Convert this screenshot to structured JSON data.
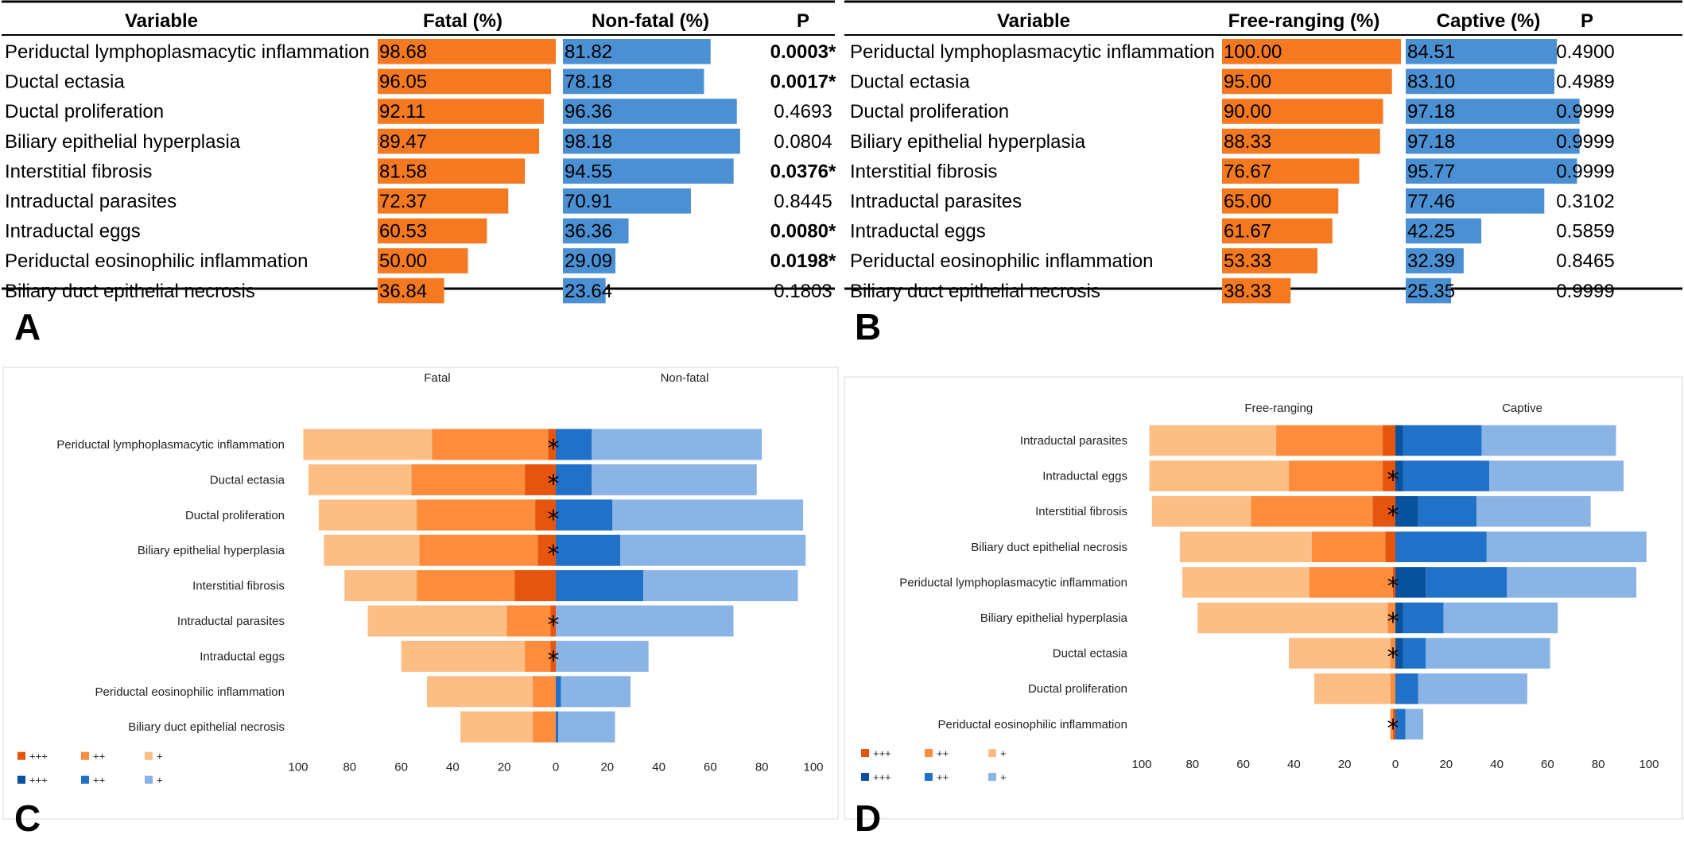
{
  "panels": {
    "A": "A",
    "B": "B",
    "C": "C",
    "D": "D"
  },
  "colors": {
    "orange_bar": "#F47920",
    "blue_bar": "#4A90D2",
    "o3": "#E6550D",
    "o2": "#FD8D3C",
    "o1": "#FDBE85",
    "b3": "#08519C",
    "b2": "#2171C9",
    "b1": "#8AB4E6"
  },
  "tables": [
    {
      "id": "A",
      "headers": [
        "Variable",
        "Fatal (%)",
        "Non-fatal (%)",
        "P"
      ],
      "rows": [
        {
          "variable": "Periductal lymphoplasmacytic inflammation",
          "a": 98.68,
          "a_label": "98.68",
          "b": 81.82,
          "b_label": "81.82",
          "p": "0.0003*",
          "sig": true
        },
        {
          "variable": "Ductal ectasia",
          "a": 96.05,
          "a_label": "96.05",
          "b": 78.18,
          "b_label": "78.18",
          "p": "0.0017*",
          "sig": true
        },
        {
          "variable": "Ductal proliferation",
          "a": 92.11,
          "a_label": "92.11",
          "b": 96.36,
          "b_label": "96.36",
          "p": "0.4693",
          "sig": false
        },
        {
          "variable": "Biliary epithelial hyperplasia",
          "a": 89.47,
          "a_label": "89.47",
          "b": 98.18,
          "b_label": "98.18",
          "p": "0.0804",
          "sig": false
        },
        {
          "variable": "Interstitial fibrosis",
          "a": 81.58,
          "a_label": "81.58",
          "b": 94.55,
          "b_label": "94.55",
          "p": "0.0376*",
          "sig": true
        },
        {
          "variable": "Intraductal parasites",
          "a": 72.37,
          "a_label": "72.37",
          "b": 70.91,
          "b_label": "70.91",
          "p": "0.8445",
          "sig": false
        },
        {
          "variable": "Intraductal eggs",
          "a": 60.53,
          "a_label": "60.53",
          "b": 36.36,
          "b_label": "36.36",
          "p": "0.0080*",
          "sig": true
        },
        {
          "variable": "Periductal eosinophilic inflammation",
          "a": 50.0,
          "a_label": "50.00",
          "b": 29.09,
          "b_label": "29.09",
          "p": "0.0198*",
          "sig": true
        },
        {
          "variable": "Biliary duct epithelial necrosis",
          "a": 36.84,
          "a_label": "36.84",
          "b": 23.64,
          "b_label": "23.64",
          "p": "0.1803",
          "sig": false
        }
      ]
    },
    {
      "id": "B",
      "headers": [
        "Variable",
        "Free-ranging (%)",
        "Captive (%)",
        "P"
      ],
      "rows": [
        {
          "variable": "Periductal lymphoplasmacytic inflammation",
          "a": 100.0,
          "a_label": "100.00",
          "b": 84.51,
          "b_label": "84.51",
          "p": "0.4900",
          "sig": false
        },
        {
          "variable": "Ductal ectasia",
          "a": 95.0,
          "a_label": "95.00",
          "b": 83.1,
          "b_label": "83.10",
          "p": "0.4989",
          "sig": false
        },
        {
          "variable": "Ductal proliferation",
          "a": 90.0,
          "a_label": "90.00",
          "b": 97.18,
          "b_label": "97.18",
          "p": "0.9999",
          "sig": false
        },
        {
          "variable": "Biliary epithelial hyperplasia",
          "a": 88.33,
          "a_label": "88.33",
          "b": 97.18,
          "b_label": "97.18",
          "p": "0.9999",
          "sig": false
        },
        {
          "variable": "Interstitial fibrosis",
          "a": 76.67,
          "a_label": "76.67",
          "b": 95.77,
          "b_label": "95.77",
          "p": "0.9999",
          "sig": false
        },
        {
          "variable": "Intraductal parasites",
          "a": 65.0,
          "a_label": "65.00",
          "b": 77.46,
          "b_label": "77.46",
          "p": "0.3102",
          "sig": false
        },
        {
          "variable": "Intraductal eggs",
          "a": 61.67,
          "a_label": "61.67",
          "b": 42.25,
          "b_label": "42.25",
          "p": "0.5859",
          "sig": false
        },
        {
          "variable": "Periductal eosinophilic inflammation",
          "a": 53.33,
          "a_label": "53.33",
          "b": 32.39,
          "b_label": "32.39",
          "p": "0.8465",
          "sig": false
        },
        {
          "variable": "Biliary duct epithelial necrosis",
          "a": 38.33,
          "a_label": "38.33",
          "b": 25.35,
          "b_label": "25.35",
          "p": "0.9999",
          "sig": false
        }
      ]
    }
  ],
  "chart_data": [
    {
      "panel": "C",
      "type": "bar",
      "orientation": "horizontal diverging stacked",
      "left_group": "Fatal",
      "right_group": "Non-fatal",
      "xlim": [
        -100,
        100
      ],
      "x_ticks": [
        "100",
        "80",
        "60",
        "40",
        "20",
        "0",
        "20",
        "40",
        "60",
        "80",
        "100"
      ],
      "legend_left": [
        "+++",
        "++",
        "+"
      ],
      "legend_right": [
        "+++",
        "++",
        "+"
      ],
      "legend_position": "bottom-left",
      "categories": [
        "Periductal lymphoplasmacytic inflammation",
        "Ductal ectasia",
        "Ductal proliferation",
        "Biliary epithelial hyperplasia",
        "Interstitial fibrosis",
        "Intraductal parasites",
        "Intraductal eggs",
        "Periductal eosinophilic inflammation",
        "Biliary duct epithelial necrosis"
      ],
      "left": [
        {
          "s3": 3,
          "s2": 45,
          "s1": 50
        },
        {
          "s3": 12,
          "s2": 44,
          "s1": 40
        },
        {
          "s3": 8,
          "s2": 46,
          "s1": 38
        },
        {
          "s3": 7,
          "s2": 46,
          "s1": 37
        },
        {
          "s3": 16,
          "s2": 38,
          "s1": 28
        },
        {
          "s3": 2,
          "s2": 17,
          "s1": 54
        },
        {
          "s3": 2,
          "s2": 10,
          "s1": 48
        },
        {
          "s3": 0,
          "s2": 9,
          "s1": 41
        },
        {
          "s3": 0,
          "s2": 9,
          "s1": 28
        }
      ],
      "right": [
        {
          "s3": 0,
          "s2": 14,
          "s1": 66
        },
        {
          "s3": 0,
          "s2": 14,
          "s1": 64
        },
        {
          "s3": 0,
          "s2": 22,
          "s1": 74
        },
        {
          "s3": 0,
          "s2": 25,
          "s1": 72
        },
        {
          "s3": 0,
          "s2": 34,
          "s1": 60
        },
        {
          "s3": 0,
          "s2": 0,
          "s1": 69
        },
        {
          "s3": 0,
          "s2": 0,
          "s1": 36
        },
        {
          "s3": 0,
          "s2": 2,
          "s1": 27
        },
        {
          "s3": 0,
          "s2": 1,
          "s1": 22
        }
      ],
      "asterisk_rows": [
        0,
        1,
        2,
        3,
        5,
        6
      ]
    },
    {
      "panel": "D",
      "type": "bar",
      "orientation": "horizontal diverging stacked",
      "left_group": "Free-ranging",
      "right_group": "Captive",
      "xlim": [
        -100,
        100
      ],
      "x_ticks": [
        "100",
        "80",
        "60",
        "40",
        "20",
        "0",
        "20",
        "40",
        "60",
        "80",
        "100"
      ],
      "legend_left": [
        "+++",
        "++",
        "+"
      ],
      "legend_right": [
        "+++",
        "++",
        "+"
      ],
      "legend_position": "bottom-left",
      "categories": [
        "Intraductal parasites",
        "Intraductal eggs",
        "Interstitial fibrosis",
        "Biliary duct epithelial necrosis",
        "Periductal lymphoplasmacytic inflammation",
        "Biliary epithelial hyperplasia",
        "Ductal ectasia",
        "Ductal proliferation",
        "Periductal eosinophilic inflammation"
      ],
      "left": [
        {
          "s3": 5,
          "s2": 42,
          "s1": 50
        },
        {
          "s3": 5,
          "s2": 37,
          "s1": 55
        },
        {
          "s3": 9,
          "s2": 48,
          "s1": 39
        },
        {
          "s3": 4,
          "s2": 29,
          "s1": 52
        },
        {
          "s3": 1,
          "s2": 33,
          "s1": 50
        },
        {
          "s3": 0,
          "s2": 3,
          "s1": 75
        },
        {
          "s3": 0,
          "s2": 2,
          "s1": 40
        },
        {
          "s3": 0,
          "s2": 2,
          "s1": 30
        },
        {
          "s3": 1,
          "s2": 1,
          "s1": 0
        }
      ],
      "right": [
        {
          "s3": 3,
          "s2": 31,
          "s1": 53
        },
        {
          "s3": 3,
          "s2": 34,
          "s1": 53
        },
        {
          "s3": 9,
          "s2": 23,
          "s1": 45
        },
        {
          "s3": 0,
          "s2": 36,
          "s1": 63
        },
        {
          "s3": 12,
          "s2": 32,
          "s1": 51
        },
        {
          "s3": 3,
          "s2": 16,
          "s1": 45
        },
        {
          "s3": 3,
          "s2": 9,
          "s1": 49
        },
        {
          "s3": 0,
          "s2": 9,
          "s1": 43
        },
        {
          "s3": 0,
          "s2": 4,
          "s1": 7
        }
      ],
      "asterisk_rows": [
        1,
        2,
        4,
        5,
        6,
        8
      ]
    }
  ]
}
